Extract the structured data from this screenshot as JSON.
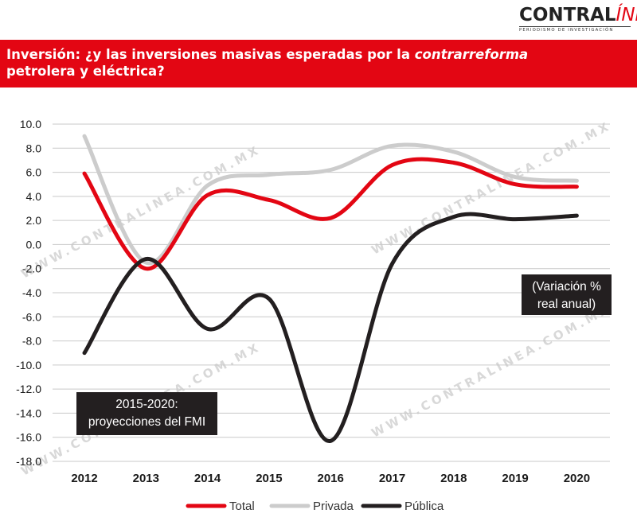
{
  "brand": {
    "name_part1": "CONTRAL",
    "name_part2": "ÍNEA",
    "tagline": "PERIODISMO DE INVESTIGACIÓN",
    "watermark": "WWW.CONTRALINEA.COM.MX",
    "accent_color": "#e30613"
  },
  "header": {
    "title_part1": "Inversión: ¿y las inversiones masivas esperadas por la ",
    "title_emphasis": "contrarreforma",
    "title_part2": "petrolera y eléctrica?"
  },
  "chart_data": {
    "type": "line",
    "categories": [
      "2012",
      "2013",
      "2014",
      "2015",
      "2016",
      "2017",
      "2018",
      "2019",
      "2020"
    ],
    "x_tick_labels": [
      "2012",
      "2013",
      "2014",
      "2015",
      "2016",
      "2017",
      "2018",
      "2019",
      "2020"
    ],
    "y_tick_labels": [
      "10.0",
      "8.0",
      "6.0",
      "4.0",
      "2.0",
      "0.0",
      "-2.0",
      "-4.0",
      "-6.0",
      "-8.0",
      "-10.0",
      "-12.0",
      "-14.0",
      "-16.0",
      "-18.0"
    ],
    "ylim": [
      -18,
      10
    ],
    "grid": true,
    "legend_position": "bottom",
    "series": [
      {
        "name": "Total",
        "color": "#e30613",
        "values": [
          5.9,
          -2.0,
          4.1,
          3.7,
          2.2,
          6.6,
          6.8,
          5.0,
          4.8
        ]
      },
      {
        "name": "Privada",
        "color": "#cccccc",
        "values": [
          9.0,
          -1.5,
          4.9,
          5.8,
          6.2,
          8.2,
          7.7,
          5.6,
          5.3
        ]
      },
      {
        "name": "Pública",
        "color": "#231f20",
        "values": [
          -9.0,
          -1.2,
          -7.0,
          -4.5,
          -16.3,
          -1.6,
          2.3,
          2.1,
          2.4
        ]
      }
    ],
    "annotations": [
      {
        "lines": [
          "2015-2020:",
          "proyecciones  del FMI"
        ]
      },
      {
        "lines": [
          "(Variación %",
          "real anual)"
        ]
      }
    ]
  }
}
